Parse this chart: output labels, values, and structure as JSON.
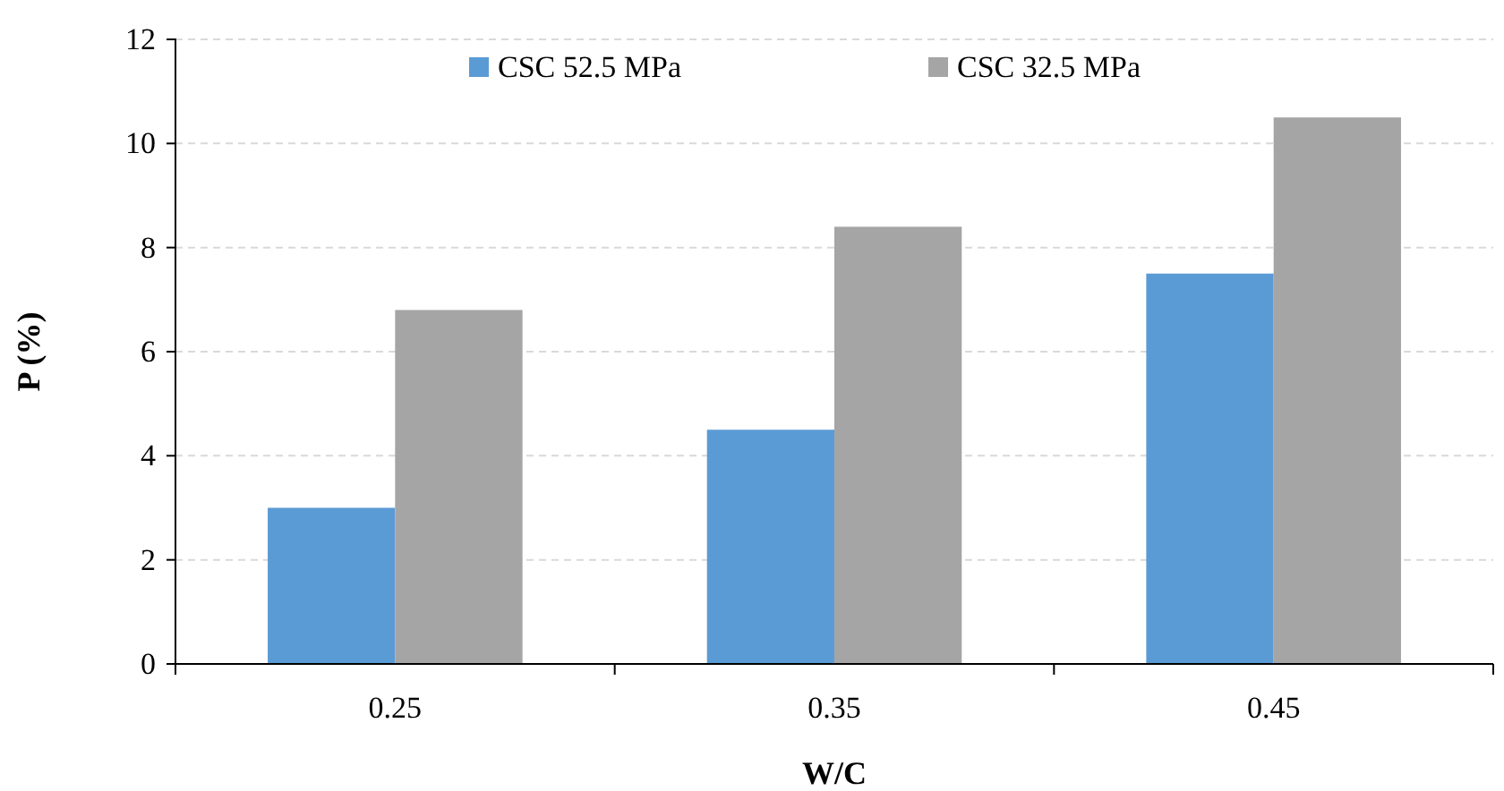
{
  "chart_data": {
    "type": "bar",
    "xlabel": "W/C",
    "ylabel": "P (%)",
    "categories": [
      "0.25",
      "0.35",
      "0.45"
    ],
    "series": [
      {
        "name": "CSC 52.5 MPa",
        "color": "#5b9bd5",
        "values": [
          3.0,
          4.5,
          7.5
        ]
      },
      {
        "name": "CSC 32.5 MPa",
        "color": "#a5a5a5",
        "values": [
          6.8,
          8.4,
          10.5
        ]
      }
    ],
    "ylim": [
      0,
      12
    ],
    "yticks": [
      0,
      2,
      4,
      6,
      8,
      10,
      12
    ],
    "grid": "y",
    "legend": "top"
  }
}
